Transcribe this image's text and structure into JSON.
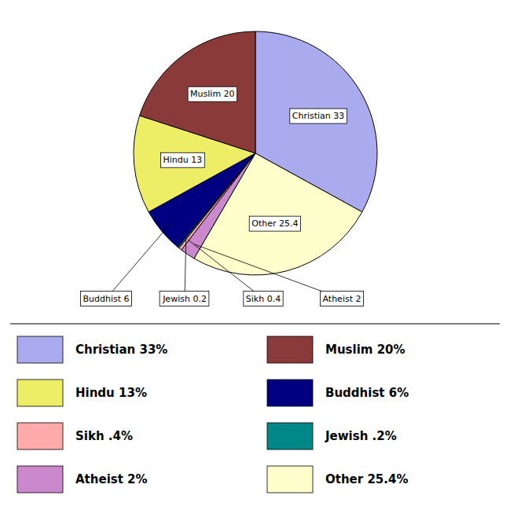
{
  "chart_data": {
    "type": "pie",
    "categories": [
      "Christian 33",
      "Other 25.4",
      "Atheist 2",
      "Sikh 0.4",
      "Jewish 0.2",
      "Buddhist 6",
      "Hindu 13",
      "Muslim 20"
    ],
    "values": [
      33,
      25.4,
      2,
      0.4,
      0.2,
      6,
      13,
      20
    ],
    "colors": [
      "#aaaaee",
      "#ffffcc",
      "#cc88cc",
      "#ffaaaa",
      "#008888",
      "#000080",
      "#eeee66",
      "#8b3a3a"
    ],
    "legend": "bottom",
    "legend_entries": [
      {
        "label": "Christian 33%",
        "color": "#aaaaee"
      },
      {
        "label": "Muslim 20%",
        "color": "#8b3a3a"
      },
      {
        "label": "Hindu 13%",
        "color": "#eeee66"
      },
      {
        "label": "Buddhist 6%",
        "color": "#000080"
      },
      {
        "label": "Sikh .4%",
        "color": "#ffaaaa"
      },
      {
        "label": "Jewish .2%",
        "color": "#008888"
      },
      {
        "label": "Atheist 2%",
        "color": "#cc88cc"
      },
      {
        "label": "Other 25.4%",
        "color": "#ffffcc"
      }
    ]
  }
}
